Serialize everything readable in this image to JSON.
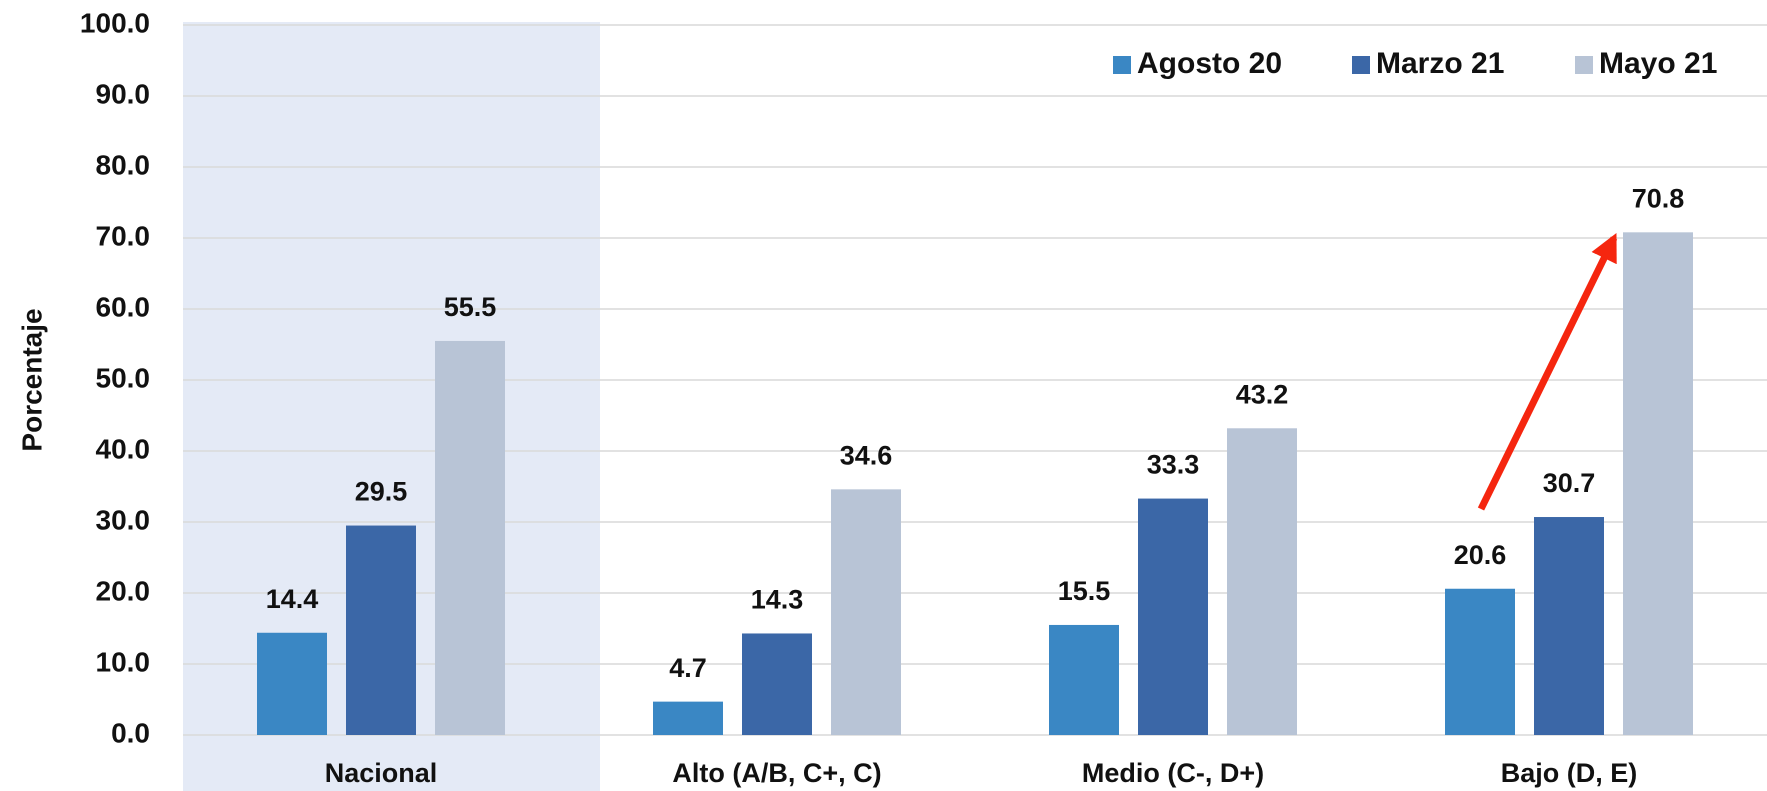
{
  "chart_data": {
    "type": "bar",
    "y_label": "Porcentaje",
    "categories": [
      "Nacional",
      "Alto (A/B, C+, C)",
      "Medio (C-, D+)",
      "Bajo (D, E)"
    ],
    "series": [
      {
        "name": "Agosto 20",
        "color": "#3a87c4",
        "values": [
          14.4,
          4.7,
          15.5,
          20.6
        ]
      },
      {
        "name": "Marzo 21",
        "color": "#3b67a7",
        "values": [
          29.5,
          14.3,
          33.3,
          30.7
        ]
      },
      {
        "name": "Mayo 21",
        "color": "#b8c4d6",
        "values": [
          55.5,
          34.6,
          43.2,
          70.8
        ]
      }
    ],
    "ylim": [
      0,
      100
    ],
    "yticks": [
      {
        "value": 0,
        "label": "0.0"
      },
      {
        "value": 10,
        "label": "10.0"
      },
      {
        "value": 20,
        "label": "20.0"
      },
      {
        "value": 30,
        "label": "30.0"
      },
      {
        "value": 40,
        "label": "40.0"
      },
      {
        "value": 50,
        "label": "50.0"
      },
      {
        "value": 60,
        "label": "60.0"
      },
      {
        "value": 70,
        "label": "70.0"
      },
      {
        "value": 80,
        "label": "80.0"
      },
      {
        "value": 90,
        "label": "90.0"
      },
      {
        "value": 100,
        "label": "100.0"
      }
    ],
    "grid": true,
    "legend": "upper right"
  }
}
